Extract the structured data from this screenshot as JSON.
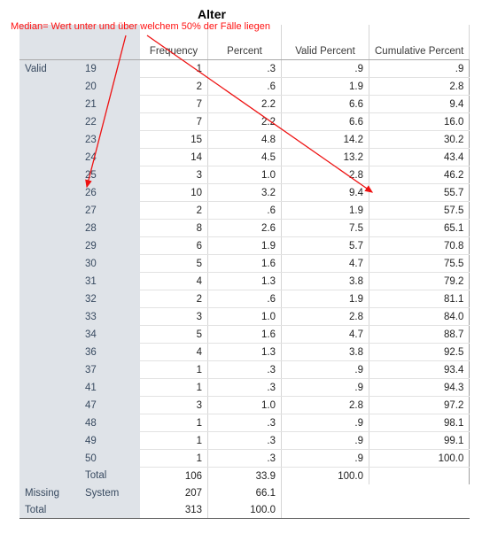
{
  "title": "Alter",
  "annotation": "Median= Wert unter und über welchem 50% der Fälle liegen",
  "headers": [
    "Frequency",
    "Percent",
    "Valid Percent",
    "Cumulative Percent"
  ],
  "valid_label": "Valid",
  "rows": [
    {
      "v": "19",
      "f": "1",
      "p": ".3",
      "vp": ".9",
      "cp": ".9"
    },
    {
      "v": "20",
      "f": "2",
      "p": ".6",
      "vp": "1.9",
      "cp": "2.8"
    },
    {
      "v": "21",
      "f": "7",
      "p": "2.2",
      "vp": "6.6",
      "cp": "9.4"
    },
    {
      "v": "22",
      "f": "7",
      "p": "2.2",
      "vp": "6.6",
      "cp": "16.0"
    },
    {
      "v": "23",
      "f": "15",
      "p": "4.8",
      "vp": "14.2",
      "cp": "30.2"
    },
    {
      "v": "24",
      "f": "14",
      "p": "4.5",
      "vp": "13.2",
      "cp": "43.4"
    },
    {
      "v": "25",
      "f": "3",
      "p": "1.0",
      "vp": "2.8",
      "cp": "46.2"
    },
    {
      "v": "26",
      "f": "10",
      "p": "3.2",
      "vp": "9.4",
      "cp": "55.7"
    },
    {
      "v": "27",
      "f": "2",
      "p": ".6",
      "vp": "1.9",
      "cp": "57.5"
    },
    {
      "v": "28",
      "f": "8",
      "p": "2.6",
      "vp": "7.5",
      "cp": "65.1"
    },
    {
      "v": "29",
      "f": "6",
      "p": "1.9",
      "vp": "5.7",
      "cp": "70.8"
    },
    {
      "v": "30",
      "f": "5",
      "p": "1.6",
      "vp": "4.7",
      "cp": "75.5"
    },
    {
      "v": "31",
      "f": "4",
      "p": "1.3",
      "vp": "3.8",
      "cp": "79.2"
    },
    {
      "v": "32",
      "f": "2",
      "p": ".6",
      "vp": "1.9",
      "cp": "81.1"
    },
    {
      "v": "33",
      "f": "3",
      "p": "1.0",
      "vp": "2.8",
      "cp": "84.0"
    },
    {
      "v": "34",
      "f": "5",
      "p": "1.6",
      "vp": "4.7",
      "cp": "88.7"
    },
    {
      "v": "36",
      "f": "4",
      "p": "1.3",
      "vp": "3.8",
      "cp": "92.5"
    },
    {
      "v": "37",
      "f": "1",
      "p": ".3",
      "vp": ".9",
      "cp": "93.4"
    },
    {
      "v": "41",
      "f": "1",
      "p": ".3",
      "vp": ".9",
      "cp": "94.3"
    },
    {
      "v": "47",
      "f": "3",
      "p": "1.0",
      "vp": "2.8",
      "cp": "97.2"
    },
    {
      "v": "48",
      "f": "1",
      "p": ".3",
      "vp": ".9",
      "cp": "98.1"
    },
    {
      "v": "49",
      "f": "1",
      "p": ".3",
      "vp": ".9",
      "cp": "99.1"
    },
    {
      "v": "50",
      "f": "1",
      "p": ".3",
      "vp": ".9",
      "cp": "100.0"
    }
  ],
  "valid_total": {
    "label": "Total",
    "f": "106",
    "p": "33.9",
    "vp": "100.0"
  },
  "missing": {
    "label": "Missing",
    "sub": "System",
    "f": "207",
    "p": "66.1"
  },
  "grand_total": {
    "label": "Total",
    "f": "313",
    "p": "100.0"
  },
  "colors": {
    "annotation": "#ff1010",
    "label_bg": "#dfe3e8",
    "label_text": "#384a60"
  }
}
